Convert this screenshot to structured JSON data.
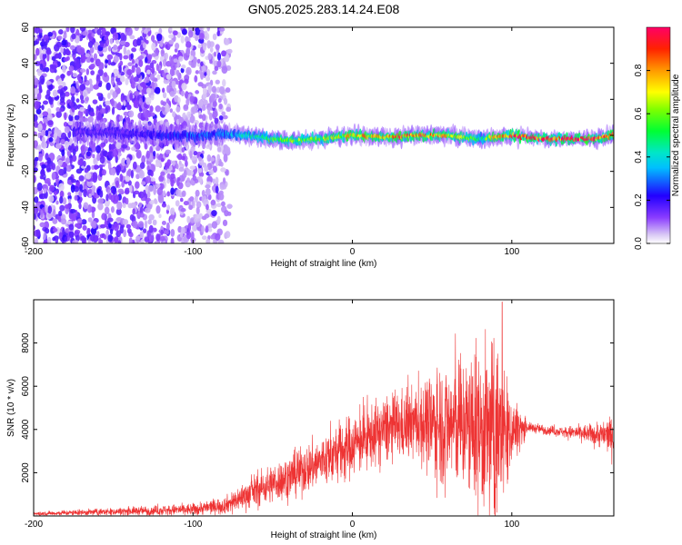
{
  "title": "GN05.2025.283.14.24.E08",
  "chart_data": [
    {
      "type": "heatmap",
      "xlabel": "Height of straight line (km)",
      "ylabel": "Frequency (Hz)",
      "xlim": [
        -200,
        164
      ],
      "ylim": [
        -60,
        60
      ],
      "x_ticks": [
        -200,
        -100,
        0,
        100
      ],
      "y_ticks": [
        -60,
        -40,
        -20,
        0,
        20,
        40,
        60
      ],
      "colorbar": {
        "label": "Normalized spectral amplitude",
        "range": [
          0,
          1
        ],
        "ticks": [
          0.0,
          0.2,
          0.4,
          0.6,
          0.8
        ],
        "colormap": "rainbow (violet to red)"
      },
      "ridge": {
        "description": "narrow high-amplitude ridge near 0 Hz",
        "x": [
          -150,
          -120,
          -100,
          -80,
          -60,
          -40,
          -20,
          0,
          20,
          40,
          60,
          80,
          100,
          120,
          150,
          164
        ],
        "center_freq": [
          2,
          0,
          0,
          1,
          -1,
          -3,
          -2,
          0,
          -1,
          0,
          0,
          -2,
          0,
          -2,
          -2,
          0
        ],
        "peak_amplitude": [
          0.15,
          0.2,
          0.25,
          0.3,
          0.45,
          0.55,
          0.6,
          0.7,
          0.75,
          0.8,
          0.75,
          0.45,
          0.95,
          0.95,
          0.95,
          0.7
        ]
      },
      "noise_region_x": [
        -200,
        -85
      ]
    },
    {
      "type": "line",
      "xlabel": "Height of straight line (km)",
      "ylabel": "SNR (10 * v/v)",
      "xlim": [
        -200,
        164
      ],
      "ylim": [
        0,
        10000
      ],
      "x_ticks": [
        -200,
        -100,
        0,
        100
      ],
      "y_ticks": [
        2000,
        4000,
        6000,
        8000
      ],
      "color": "#ee3333",
      "envelope": {
        "x": [
          -200,
          -150,
          -100,
          -80,
          -60,
          -40,
          -20,
          0,
          20,
          40,
          55,
          70,
          90,
          100,
          110,
          130,
          150,
          164
        ],
        "mean": [
          100,
          200,
          300,
          500,
          1200,
          1800,
          2500,
          3300,
          4000,
          4300,
          4300,
          4200,
          3800,
          4000,
          4100,
          3900,
          3800,
          3700
        ],
        "spread": [
          80,
          150,
          250,
          350,
          700,
          900,
          1100,
          1300,
          1300,
          1500,
          2500,
          2800,
          3800,
          1500,
          200,
          200,
          400,
          800
        ],
        "max_peak": {
          "x": 94,
          "y": 9900
        }
      }
    }
  ]
}
